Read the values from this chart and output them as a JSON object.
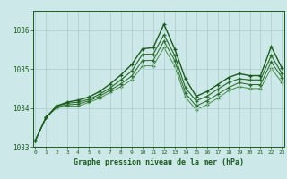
{
  "title": "Graphe pression niveau de la mer (hPa)",
  "bg_color": "#cce8e8",
  "grid_color": "#aacccc",
  "line_color_dark": "#1a5c1a",
  "line_color_mid": "#2d6e2d",
  "line_color_light": "#3a8a3a",
  "xmin": 0,
  "xmax": 23,
  "ymin": 1033.0,
  "ymax": 1036.5,
  "yticks": [
    1033,
    1034,
    1035,
    1036
  ],
  "xticks": [
    0,
    1,
    2,
    3,
    4,
    5,
    6,
    7,
    8,
    9,
    10,
    11,
    12,
    13,
    14,
    15,
    16,
    17,
    18,
    19,
    20,
    21,
    22,
    23
  ],
  "series1": [
    1033.15,
    1033.75,
    1034.05,
    1034.15,
    1034.2,
    1034.28,
    1034.42,
    1034.62,
    1034.85,
    1035.12,
    1035.52,
    1035.55,
    1036.15,
    1035.52,
    1034.75,
    1034.3,
    1034.42,
    1034.6,
    1034.78,
    1034.88,
    1034.83,
    1034.83,
    1035.58,
    1035.02
  ],
  "series2": [
    1033.15,
    1033.75,
    1034.05,
    1034.12,
    1034.15,
    1034.22,
    1034.35,
    1034.52,
    1034.72,
    1034.95,
    1035.38,
    1035.38,
    1035.88,
    1035.35,
    1034.52,
    1034.18,
    1034.3,
    1034.48,
    1034.65,
    1034.75,
    1034.72,
    1034.72,
    1035.35,
    1034.88
  ],
  "series3": [
    1033.15,
    1033.75,
    1034.02,
    1034.08,
    1034.1,
    1034.18,
    1034.3,
    1034.46,
    1034.62,
    1034.82,
    1035.22,
    1035.22,
    1035.72,
    1035.22,
    1034.38,
    1034.05,
    1034.18,
    1034.35,
    1034.52,
    1034.65,
    1034.6,
    1034.6,
    1035.18,
    1034.78
  ],
  "series4": [
    1033.15,
    1033.75,
    1034.0,
    1034.05,
    1034.05,
    1034.14,
    1034.25,
    1034.4,
    1034.55,
    1034.72,
    1035.08,
    1035.08,
    1035.55,
    1035.08,
    1034.28,
    1033.95,
    1034.08,
    1034.25,
    1034.44,
    1034.55,
    1034.5,
    1034.5,
    1035.02,
    1034.65
  ]
}
